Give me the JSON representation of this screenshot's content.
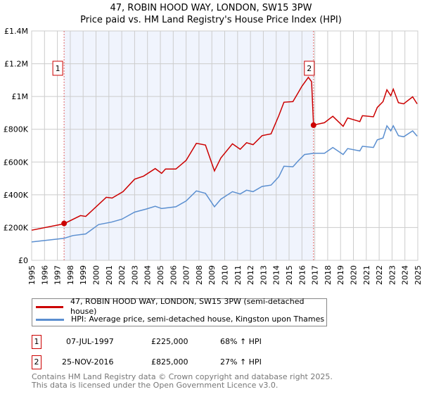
{
  "header": {
    "title": "47, ROBIN HOOD WAY, LONDON, SW15 3PW",
    "subtitle": "Price paid vs. HM Land Registry's House Price Index (HPI)"
  },
  "chart_data": {
    "type": "line",
    "title": "47, ROBIN HOOD WAY, LONDON, SW15 3PW",
    "subtitle": "Price paid vs. HM Land Registry's House Price Index (HPI)",
    "xlim": [
      1995,
      2025
    ],
    "ylim": [
      0,
      1400000
    ],
    "xticks": [
      "1995",
      "1996",
      "1997",
      "1998",
      "1999",
      "2000",
      "2001",
      "2002",
      "2003",
      "2004",
      "2005",
      "2006",
      "2007",
      "2008",
      "2009",
      "2010",
      "2011",
      "2012",
      "2013",
      "2014",
      "2015",
      "2016",
      "2017",
      "2018",
      "2019",
      "2020",
      "2021",
      "2022",
      "2023",
      "2024",
      "2025"
    ],
    "yticks": [
      {
        "v": 0,
        "label": "£0"
      },
      {
        "v": 200000,
        "label": "£200K"
      },
      {
        "v": 400000,
        "label": "£400K"
      },
      {
        "v": 600000,
        "label": "£600K"
      },
      {
        "v": 800000,
        "label": "£800K"
      },
      {
        "v": 1000000,
        "label": "£1M"
      },
      {
        "v": 1200000,
        "label": "£1.2M"
      },
      {
        "v": 1400000,
        "label": "£1.4M"
      }
    ],
    "grid": true,
    "series": [
      {
        "name": "47, ROBIN HOOD WAY, LONDON, SW15 3PW (semi-detached house)",
        "color": "#cc0000",
        "x": [
          1995,
          1997.5,
          1998.8,
          1999.2,
          2000.8,
          2001.25,
          2002.1,
          2003,
          2003.7,
          2004.6,
          2005.1,
          2005.4,
          2006.2,
          2007,
          2007.8,
          2008.5,
          2009.2,
          2009.7,
          2010.6,
          2011.2,
          2011.7,
          2012.2,
          2012.9,
          2013.6,
          2014.2,
          2014.6,
          2015.3,
          2015.7,
          2016,
          2016.5,
          2016.75,
          2016.9,
          2017.75,
          2018.4,
          2019.2,
          2019.55,
          2020.5,
          2020.7,
          2021.55,
          2021.85,
          2022.3,
          2022.6,
          2022.9,
          2023.1,
          2023.5,
          2023.9,
          2024.6,
          2024.95
        ],
        "y": [
          184000,
          223000,
          273000,
          268000,
          385000,
          380000,
          419000,
          495000,
          514000,
          560000,
          531000,
          557000,
          557000,
          610000,
          714000,
          704000,
          546000,
          625000,
          711000,
          678000,
          718000,
          706000,
          761000,
          772000,
          883000,
          965000,
          969000,
          1022000,
          1063000,
          1117000,
          1091000,
          826000,
          840000,
          879000,
          818000,
          869000,
          847000,
          883000,
          876000,
          933000,
          969000,
          1041000,
          1005000,
          1045000,
          962000,
          955000,
          998000,
          955000
        ]
      },
      {
        "name": "HPI: Average price, semi-detached house, Kingston upon Thames",
        "color": "#5b8fd0",
        "x": [
          1995,
          1997.5,
          1998.2,
          1999.2,
          2000.2,
          2001.2,
          2002,
          2003,
          2003.9,
          2004.6,
          2005.1,
          2006.2,
          2007,
          2007.8,
          2008.5,
          2009.2,
          2009.7,
          2010.6,
          2011.2,
          2011.7,
          2012.2,
          2012.9,
          2013.6,
          2014.2,
          2014.6,
          2015.3,
          2015.7,
          2016.2,
          2016.9,
          2017.75,
          2018.4,
          2019.2,
          2019.55,
          2020.5,
          2020.7,
          2021.55,
          2021.85,
          2022.3,
          2022.6,
          2022.9,
          2023.1,
          2023.5,
          2023.9,
          2024.6,
          2024.95
        ],
        "y": [
          112000,
          134000,
          151000,
          161000,
          218000,
          233000,
          251000,
          294000,
          313000,
          330000,
          316000,
          327000,
          362000,
          424000,
          409000,
          327000,
          373000,
          419000,
          405000,
          428000,
          419000,
          451000,
          459000,
          510000,
          574000,
          571000,
          606000,
          646000,
          653000,
          653000,
          689000,
          646000,
          682000,
          668000,
          696000,
          689000,
          735000,
          747000,
          821000,
          790000,
          821000,
          761000,
          754000,
          790000,
          758000
        ]
      }
    ],
    "sales": [
      {
        "label": "1",
        "year": 1997.52,
        "price": 225000
      },
      {
        "label": "2",
        "year": 2016.9,
        "price": 825000
      }
    ],
    "legend_placement": "below"
  },
  "legend": {
    "items": [
      "47, ROBIN HOOD WAY, LONDON, SW15 3PW (semi-detached house)",
      "HPI: Average price, semi-detached house, Kingston upon Thames"
    ]
  },
  "transactions": [
    {
      "num": "1",
      "date": "07-JUL-1997",
      "price": "£225,000",
      "hpi": "68% ↑ HPI"
    },
    {
      "num": "2",
      "date": "25-NOV-2016",
      "price": "£825,000",
      "hpi": "27% ↑ HPI"
    }
  ],
  "footer": {
    "line1": "Contains HM Land Registry data © Crown copyright and database right 2025.",
    "line2": "This data is licensed under the Open Government Licence v3.0."
  }
}
